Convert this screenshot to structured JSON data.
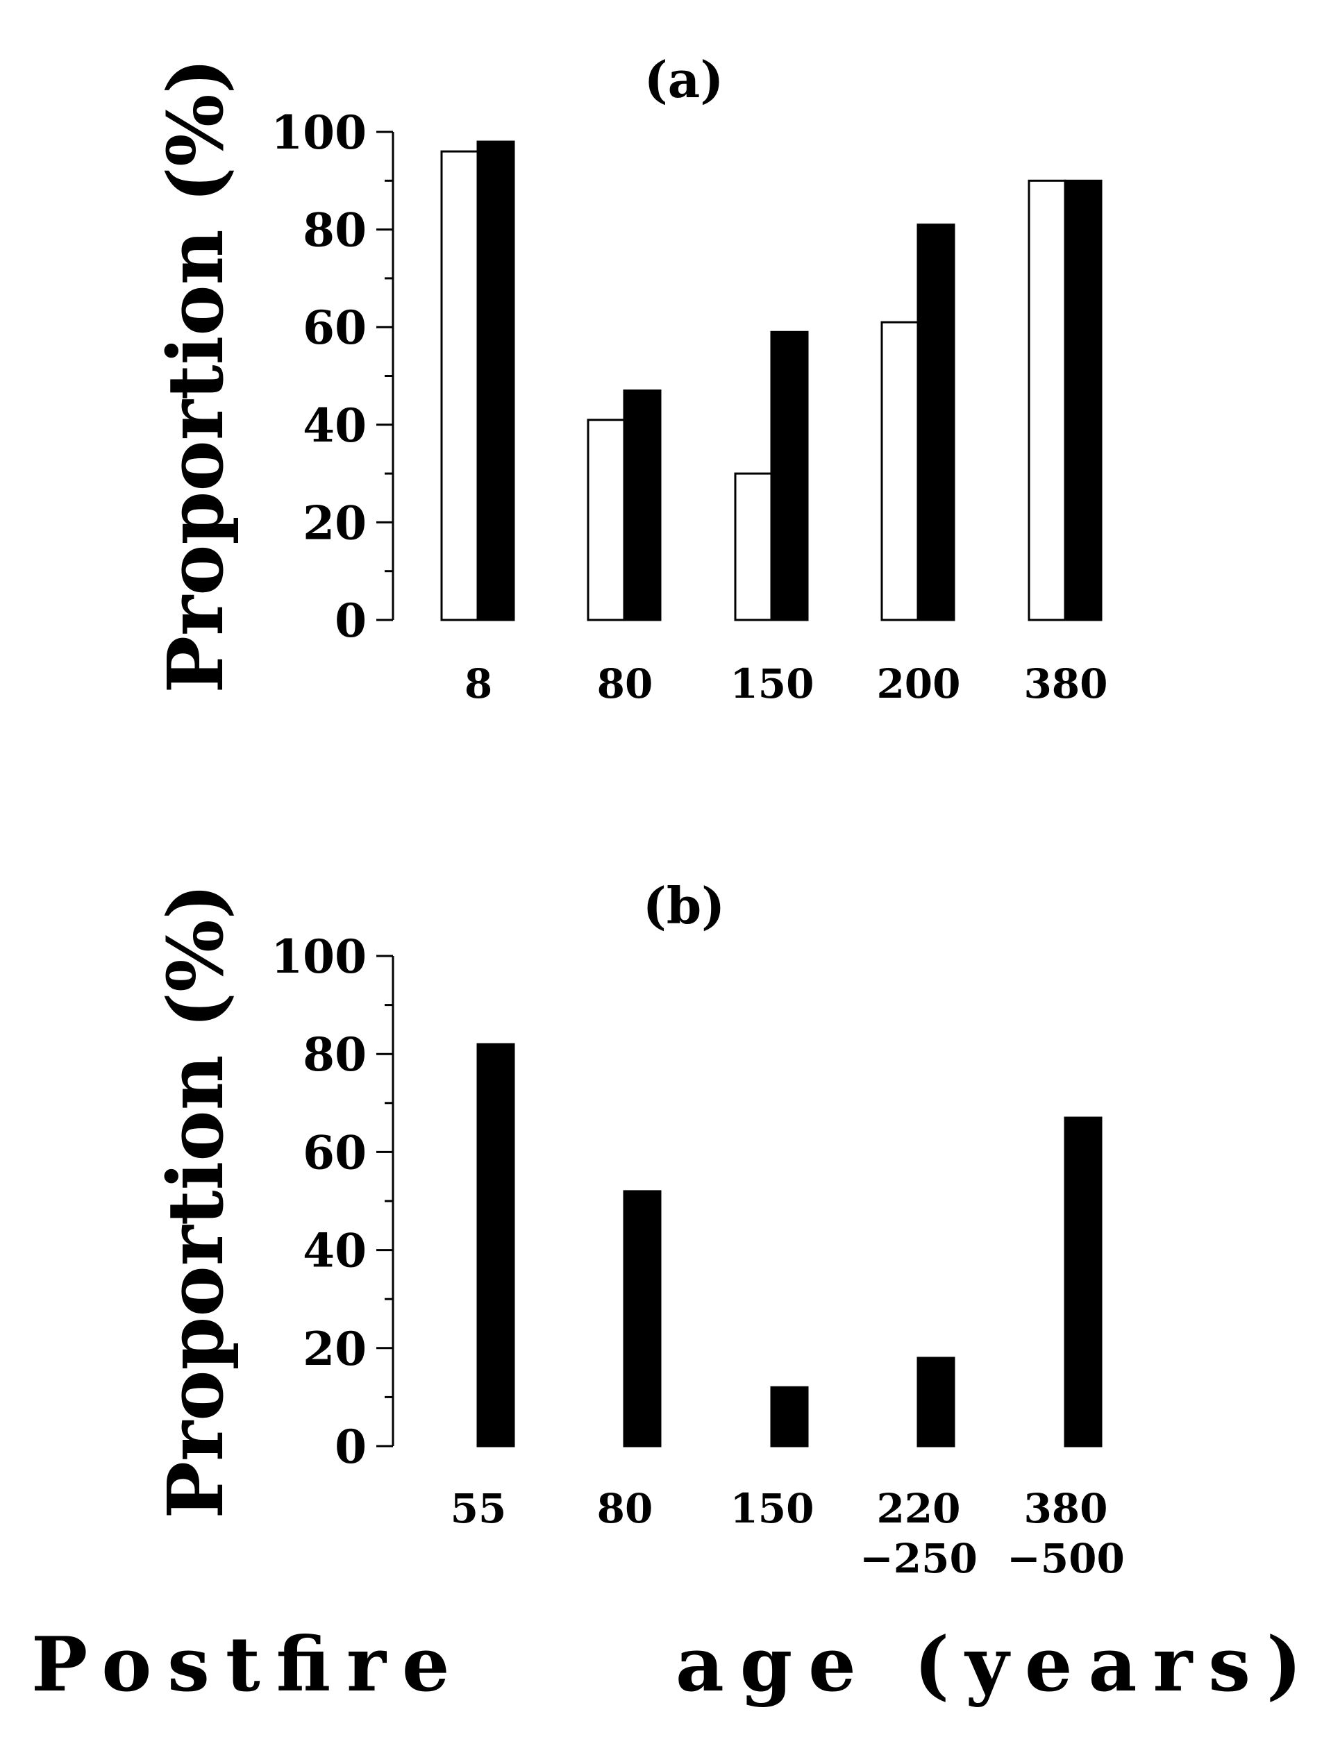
{
  "chart_data": [
    {
      "type": "bar",
      "panel_label": "(a)",
      "ylabel": "Proportion (%)",
      "ylim": [
        0,
        100
      ],
      "yticks": [
        "0",
        "20",
        "40",
        "60",
        "80",
        "100"
      ],
      "categories": [
        [
          "8"
        ],
        [
          "80"
        ],
        [
          "150"
        ],
        [
          "200"
        ],
        [
          "380"
        ]
      ],
      "series": [
        {
          "fill": "#ffffff",
          "values": [
            96,
            41,
            30,
            61,
            90
          ]
        },
        {
          "fill": "#000000",
          "values": [
            98,
            47,
            59,
            81,
            90
          ]
        }
      ]
    },
    {
      "type": "bar",
      "panel_label": "(b)",
      "ylabel": "Proportion (%)",
      "ylim": [
        0,
        100
      ],
      "yticks": [
        "0",
        "20",
        "40",
        "60",
        "80",
        "100"
      ],
      "categories": [
        [
          "55"
        ],
        [
          "80"
        ],
        [
          "150"
        ],
        [
          "220",
          "−250"
        ],
        [
          "380",
          "−500"
        ]
      ],
      "series": [
        {
          "fill": "#000000",
          "values": [
            82,
            52,
            12,
            18,
            67
          ]
        }
      ]
    }
  ],
  "xlabel": "Postfire     age (years)"
}
